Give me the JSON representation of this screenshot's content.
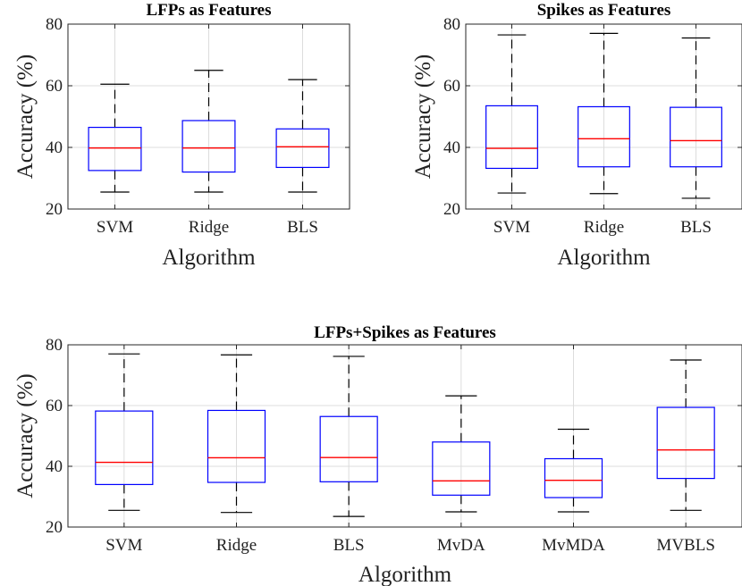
{
  "chart_data": [
    {
      "type": "boxplot",
      "title": "LFPs as Features",
      "xlabel": "Algorithm",
      "ylabel": "Accuracy (%)",
      "ylim": [
        20,
        80
      ],
      "yticks": [
        20,
        40,
        60,
        80
      ],
      "grid": true,
      "categories": [
        "SVM",
        "Ridge",
        "BLS"
      ],
      "boxes": [
        {
          "min": 25.5,
          "q1": 32.5,
          "median": 39.8,
          "q3": 46.5,
          "max": 60.5
        },
        {
          "min": 25.5,
          "q1": 32.0,
          "median": 39.8,
          "q3": 48.7,
          "max": 65.0
        },
        {
          "min": 25.5,
          "q1": 33.5,
          "median": 40.2,
          "q3": 46.0,
          "max": 62.0
        }
      ]
    },
    {
      "type": "boxplot",
      "title": "Spikes as Features",
      "xlabel": "Algorithm",
      "ylabel": "Accuracy (%)",
      "ylim": [
        20,
        80
      ],
      "yticks": [
        20,
        40,
        60,
        80
      ],
      "grid": true,
      "categories": [
        "SVM",
        "Ridge",
        "BLS"
      ],
      "boxes": [
        {
          "min": 25.2,
          "q1": 33.2,
          "median": 39.7,
          "q3": 53.5,
          "max": 76.5
        },
        {
          "min": 25.0,
          "q1": 33.7,
          "median": 42.8,
          "q3": 53.2,
          "max": 77.0
        },
        {
          "min": 23.5,
          "q1": 33.7,
          "median": 42.2,
          "q3": 53.0,
          "max": 75.5
        }
      ]
    },
    {
      "type": "boxplot",
      "title": "LFPs+Spikes as Features",
      "xlabel": "Algorithm",
      "ylabel": "Accuracy (%)",
      "ylim": [
        20,
        80
      ],
      "yticks": [
        20,
        40,
        60,
        80
      ],
      "grid": true,
      "categories": [
        "SVM",
        "Ridge",
        "BLS",
        "MvDA",
        "MvMDA",
        "MVBLS"
      ],
      "boxes": [
        {
          "min": 25.5,
          "q1": 34.0,
          "median": 41.3,
          "q3": 58.2,
          "max": 77.0
        },
        {
          "min": 24.8,
          "q1": 34.7,
          "median": 42.8,
          "q3": 58.4,
          "max": 76.7
        },
        {
          "min": 23.5,
          "q1": 34.9,
          "median": 42.9,
          "q3": 56.4,
          "max": 76.2
        },
        {
          "min": 25.0,
          "q1": 30.5,
          "median": 35.2,
          "q3": 48.0,
          "max": 63.2
        },
        {
          "min": 25.0,
          "q1": 29.7,
          "median": 35.4,
          "q3": 42.5,
          "max": 52.2
        },
        {
          "min": 25.5,
          "q1": 36.0,
          "median": 45.4,
          "q3": 59.4,
          "max": 75.0
        }
      ]
    }
  ]
}
